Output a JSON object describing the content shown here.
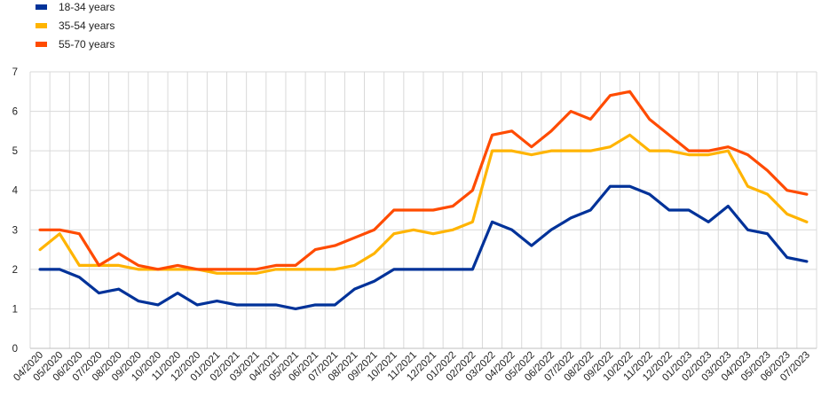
{
  "chart_data": {
    "type": "line",
    "title": "",
    "xlabel": "",
    "ylabel": "",
    "ylim": [
      0,
      7
    ],
    "yticks": [
      0,
      1,
      2,
      3,
      4,
      5,
      6,
      7
    ],
    "grid": true,
    "legend_position": "top-left",
    "categories": [
      "04/2020",
      "05/2020",
      "06/2020",
      "07/2020",
      "08/2020",
      "09/2020",
      "10/2020",
      "11/2020",
      "12/2020",
      "01/2021",
      "02/2021",
      "03/2021",
      "04/2021",
      "05/2021",
      "06/2021",
      "07/2021",
      "08/2021",
      "09/2021",
      "10/2021",
      "11/2021",
      "12/2021",
      "01/2022",
      "02/2022",
      "03/2022",
      "04/2022",
      "05/2022",
      "06/2022",
      "07/2022",
      "08/2022",
      "09/2022",
      "10/2022",
      "11/2022",
      "12/2022",
      "01/2023",
      "02/2023",
      "03/2023",
      "04/2023",
      "05/2023",
      "06/2023",
      "07/2023"
    ],
    "series": [
      {
        "name": "18-34 years",
        "color": "#003299",
        "values": [
          2.0,
          2.0,
          1.8,
          1.4,
          1.5,
          1.2,
          1.1,
          1.4,
          1.1,
          1.2,
          1.1,
          1.1,
          1.1,
          1.0,
          1.1,
          1.1,
          1.5,
          1.7,
          2.0,
          2.0,
          2.0,
          2.0,
          2.0,
          3.2,
          3.0,
          2.6,
          3.0,
          3.3,
          3.5,
          4.1,
          4.1,
          3.9,
          3.5,
          3.5,
          3.2,
          3.6,
          3.0,
          2.9,
          2.3,
          2.2
        ]
      },
      {
        "name": "35-54 years",
        "color": "#FFB400",
        "values": [
          2.5,
          2.9,
          2.1,
          2.1,
          2.1,
          2.0,
          2.0,
          2.0,
          2.0,
          1.9,
          1.9,
          1.9,
          2.0,
          2.0,
          2.0,
          2.0,
          2.1,
          2.4,
          2.9,
          3.0,
          2.9,
          3.0,
          3.2,
          5.0,
          5.0,
          4.9,
          5.0,
          5.0,
          5.0,
          5.1,
          5.4,
          5.0,
          5.0,
          4.9,
          4.9,
          5.0,
          4.1,
          3.9,
          3.4,
          3.2
        ]
      },
      {
        "name": "55-70 years",
        "color": "#FF4B00",
        "values": [
          3.0,
          3.0,
          2.9,
          2.1,
          2.4,
          2.1,
          2.0,
          2.1,
          2.0,
          2.0,
          2.0,
          2.0,
          2.1,
          2.1,
          2.5,
          2.6,
          2.8,
          3.0,
          3.5,
          3.5,
          3.5,
          3.6,
          4.0,
          5.4,
          5.5,
          5.1,
          5.5,
          6.0,
          5.8,
          6.4,
          6.5,
          5.8,
          5.4,
          5.0,
          5.0,
          5.1,
          4.9,
          4.5,
          4.0,
          3.9
        ]
      }
    ]
  }
}
